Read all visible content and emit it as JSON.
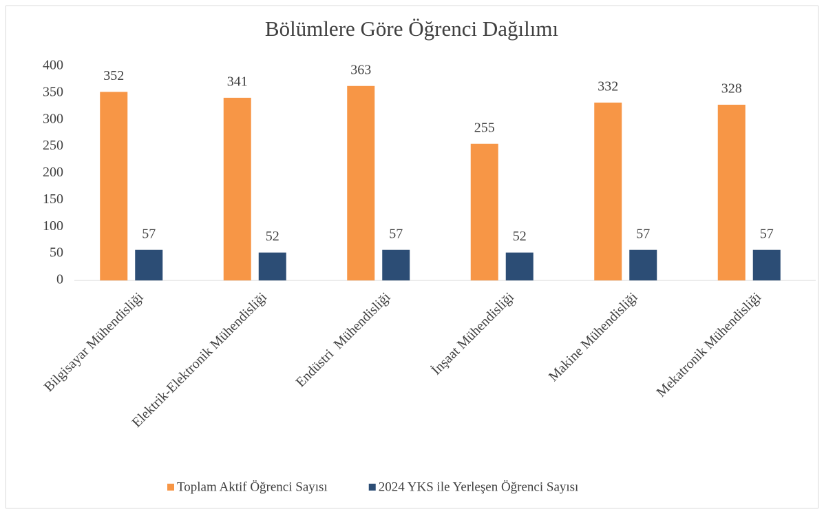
{
  "chart_data": {
    "type": "bar",
    "title": "Bölümlere Göre Öğrenci Dağılımı",
    "categories": [
      "Bilgisayar Mühendisliği",
      "Elektrik-Elektronik Mühendisliği",
      "Endüstri  Mühendisliği",
      "İnşaat Mühendisliği",
      "Makine Mühendisliği",
      "Mekatronik Mühendisliği"
    ],
    "series": [
      {
        "name": "Toplam Aktif Öğrenci Sayısı",
        "color": "#f79646",
        "values": [
          352,
          341,
          363,
          255,
          332,
          328
        ]
      },
      {
        "name": "2024 YKS ile Yerleşen Öğrenci Sayısı",
        "color": "#2c4d75",
        "values": [
          57,
          52,
          57,
          52,
          57,
          57
        ]
      }
    ],
    "ylim": [
      0,
      400
    ],
    "yticks": [
      0,
      50,
      100,
      150,
      200,
      250,
      300,
      350,
      400
    ],
    "grid": false,
    "legend": "bottom"
  }
}
